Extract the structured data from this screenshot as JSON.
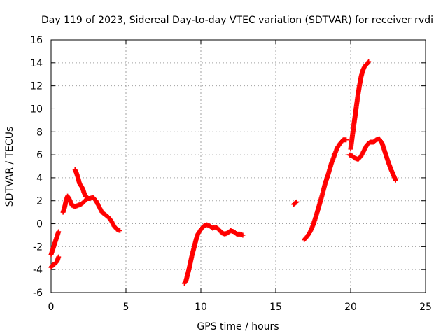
{
  "chart_data": {
    "type": "scatter",
    "title": "Day 119 of 2023, Sidereal Day-to-day VTEC variation (SDTVAR) for receiver rvdi",
    "xlabel": "GPS time / hours",
    "ylabel": "SDTVAR / TECUs",
    "xlim": [
      0,
      25
    ],
    "ylim": [
      -6,
      16
    ],
    "xticks": [
      "0",
      "5",
      "10",
      "15",
      "20",
      "25"
    ],
    "yticks": [
      "-6",
      "-4",
      "-2",
      "0",
      "2",
      "4",
      "6",
      "8",
      "10",
      "12",
      "14",
      "16"
    ],
    "grid": true,
    "marker": "plus",
    "color": "#ff0000",
    "segments": [
      {
        "points": [
          [
            0.0,
            -2.7
          ],
          [
            0.1,
            -2.3
          ],
          [
            0.2,
            -1.9
          ],
          [
            0.3,
            -1.5
          ],
          [
            0.4,
            -1.1
          ],
          [
            0.5,
            -0.7
          ]
        ]
      },
      {
        "points": [
          [
            0.0,
            -3.8
          ],
          [
            0.1,
            -3.6
          ],
          [
            0.25,
            -3.5
          ],
          [
            0.4,
            -3.3
          ],
          [
            0.5,
            -2.9
          ]
        ]
      },
      {
        "points": [
          [
            0.8,
            1.0
          ],
          [
            0.9,
            1.4
          ],
          [
            1.0,
            2.0
          ],
          [
            1.1,
            2.4
          ],
          [
            1.2,
            2.2
          ],
          [
            1.3,
            1.9
          ],
          [
            1.4,
            1.6
          ],
          [
            1.6,
            1.5
          ],
          [
            1.8,
            1.6
          ],
          [
            2.0,
            1.7
          ],
          [
            2.2,
            1.9
          ],
          [
            2.4,
            2.2
          ],
          [
            2.6,
            2.2
          ],
          [
            2.8,
            2.3
          ],
          [
            3.0,
            2.0
          ],
          [
            3.2,
            1.5
          ],
          [
            3.4,
            1.0
          ],
          [
            3.6,
            0.8
          ],
          [
            3.8,
            0.6
          ],
          [
            4.0,
            0.3
          ],
          [
            4.2,
            -0.2
          ],
          [
            4.4,
            -0.5
          ],
          [
            4.6,
            -0.6
          ]
        ]
      },
      {
        "points": [
          [
            1.6,
            4.7
          ],
          [
            1.7,
            4.4
          ],
          [
            1.8,
            4.0
          ],
          [
            1.9,
            3.5
          ],
          [
            2.0,
            3.3
          ],
          [
            2.1,
            3.1
          ],
          [
            2.2,
            2.7
          ],
          [
            2.3,
            2.4
          ],
          [
            2.5,
            2.2
          ]
        ]
      },
      {
        "points": [
          [
            8.9,
            -5.2
          ],
          [
            9.0,
            -5.0
          ],
          [
            9.1,
            -4.5
          ],
          [
            9.2,
            -4.0
          ],
          [
            9.3,
            -3.4
          ],
          [
            9.4,
            -2.8
          ],
          [
            9.5,
            -2.3
          ],
          [
            9.6,
            -1.8
          ],
          [
            9.7,
            -1.3
          ],
          [
            9.8,
            -0.9
          ],
          [
            10.0,
            -0.5
          ],
          [
            10.2,
            -0.2
          ],
          [
            10.4,
            -0.1
          ],
          [
            10.6,
            -0.2
          ],
          [
            10.8,
            -0.4
          ],
          [
            11.0,
            -0.3
          ],
          [
            11.2,
            -0.5
          ],
          [
            11.4,
            -0.8
          ],
          [
            11.6,
            -0.9
          ],
          [
            11.8,
            -0.8
          ],
          [
            12.0,
            -0.6
          ],
          [
            12.2,
            -0.7
          ],
          [
            12.4,
            -0.9
          ],
          [
            12.6,
            -0.9
          ],
          [
            12.8,
            -1.0
          ]
        ]
      },
      {
        "points": [
          [
            16.2,
            1.7
          ],
          [
            16.3,
            1.8
          ],
          [
            16.4,
            1.9
          ]
        ]
      },
      {
        "points": [
          [
            16.9,
            -1.4
          ],
          [
            17.1,
            -1.1
          ],
          [
            17.3,
            -0.7
          ],
          [
            17.5,
            -0.1
          ],
          [
            17.7,
            0.7
          ],
          [
            17.9,
            1.6
          ],
          [
            18.1,
            2.5
          ],
          [
            18.3,
            3.5
          ],
          [
            18.5,
            4.3
          ],
          [
            18.7,
            5.2
          ],
          [
            18.9,
            5.9
          ],
          [
            19.1,
            6.6
          ],
          [
            19.3,
            7.0
          ],
          [
            19.5,
            7.3
          ],
          [
            19.7,
            7.3
          ]
        ]
      },
      {
        "points": [
          [
            19.9,
            6.0
          ],
          [
            20.1,
            5.9
          ],
          [
            20.3,
            5.7
          ],
          [
            20.5,
            5.6
          ],
          [
            20.7,
            5.9
          ],
          [
            20.9,
            6.4
          ],
          [
            21.1,
            6.9
          ],
          [
            21.3,
            7.1
          ],
          [
            21.5,
            7.1
          ],
          [
            21.7,
            7.3
          ],
          [
            21.9,
            7.4
          ],
          [
            22.1,
            7.0
          ],
          [
            22.3,
            6.2
          ],
          [
            22.5,
            5.4
          ],
          [
            22.7,
            4.7
          ],
          [
            22.9,
            4.1
          ],
          [
            23.0,
            3.8
          ]
        ]
      },
      {
        "points": [
          [
            20.0,
            6.5
          ],
          [
            20.1,
            7.5
          ],
          [
            20.2,
            8.5
          ],
          [
            20.3,
            9.4
          ],
          [
            20.4,
            10.4
          ],
          [
            20.5,
            11.3
          ],
          [
            20.6,
            12.1
          ],
          [
            20.7,
            12.8
          ],
          [
            20.8,
            13.3
          ],
          [
            20.9,
            13.6
          ],
          [
            21.0,
            13.8
          ],
          [
            21.1,
            13.9
          ],
          [
            21.2,
            14.1
          ]
        ]
      }
    ]
  }
}
